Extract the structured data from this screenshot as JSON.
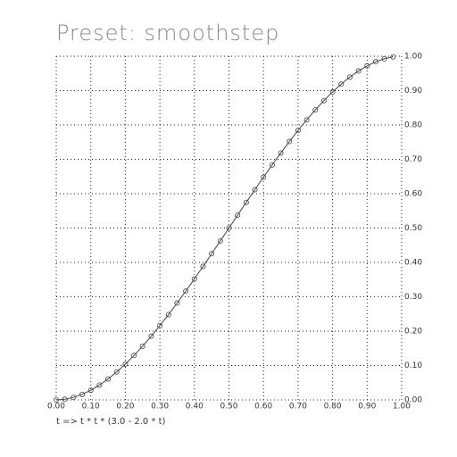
{
  "chart_data": {
    "type": "line",
    "title": "Preset: smoothstep",
    "subtitle": "t => t * t * (3.0 - 2.0 * t)",
    "x": [
      0,
      0.025,
      0.05,
      0.075,
      0.1,
      0.125,
      0.15,
      0.175,
      0.2,
      0.225,
      0.25,
      0.275,
      0.3,
      0.325,
      0.35,
      0.375,
      0.4,
      0.425,
      0.45,
      0.475,
      0.5,
      0.525,
      0.55,
      0.575,
      0.6,
      0.625,
      0.65,
      0.675,
      0.7,
      0.725,
      0.75,
      0.775,
      0.8,
      0.825,
      0.85,
      0.875,
      0.9,
      0.925,
      0.95,
      0.975
    ],
    "series": [
      {
        "color": "#444444",
        "values": [
          0,
          0.0018,
          0.0073,
          0.016,
          0.028,
          0.043,
          0.0608,
          0.0812,
          0.104,
          0.1291,
          0.1563,
          0.1853,
          0.216,
          0.2482,
          0.2818,
          0.3164,
          0.352,
          0.3883,
          0.4253,
          0.4625,
          0.5,
          0.5375,
          0.5748,
          0.6117,
          0.648,
          0.6836,
          0.7183,
          0.7518,
          0.784,
          0.8147,
          0.8438,
          0.8709,
          0.896,
          0.9188,
          0.9393,
          0.957,
          0.972,
          0.984,
          0.9928,
          0.9982
        ]
      }
    ],
    "xlim": [
      0,
      1
    ],
    "ylim": [
      0,
      1
    ],
    "xticks": [
      {
        "value": 0,
        "label": "0.00"
      },
      {
        "value": 0.1,
        "label": "0.10"
      },
      {
        "value": 0.2,
        "label": "0.20"
      },
      {
        "value": 0.3,
        "label": "0.30"
      },
      {
        "value": 0.4,
        "label": "0.40"
      },
      {
        "value": 0.5,
        "label": "0.50"
      },
      {
        "value": 0.6,
        "label": "0.60"
      },
      {
        "value": 0.7,
        "label": "0.70"
      },
      {
        "value": 0.8,
        "label": "0.80"
      },
      {
        "value": 0.9,
        "label": "0.90"
      },
      {
        "value": 1,
        "label": "1.00"
      }
    ],
    "yticks": [
      {
        "value": 0,
        "label": "0.00"
      },
      {
        "value": 0.1,
        "label": "0.10"
      },
      {
        "value": 0.2,
        "label": "0.20"
      },
      {
        "value": 0.3,
        "label": "0.30"
      },
      {
        "value": 0.4,
        "label": "0.40"
      },
      {
        "value": 0.5,
        "label": "0.50"
      },
      {
        "value": 0.6,
        "label": "0.60"
      },
      {
        "value": 0.7,
        "label": "0.70"
      },
      {
        "value": 0.8,
        "label": "0.80"
      },
      {
        "value": 0.9,
        "label": "0.90"
      },
      {
        "value": 1,
        "label": "1.00"
      }
    ],
    "grid": true
  }
}
